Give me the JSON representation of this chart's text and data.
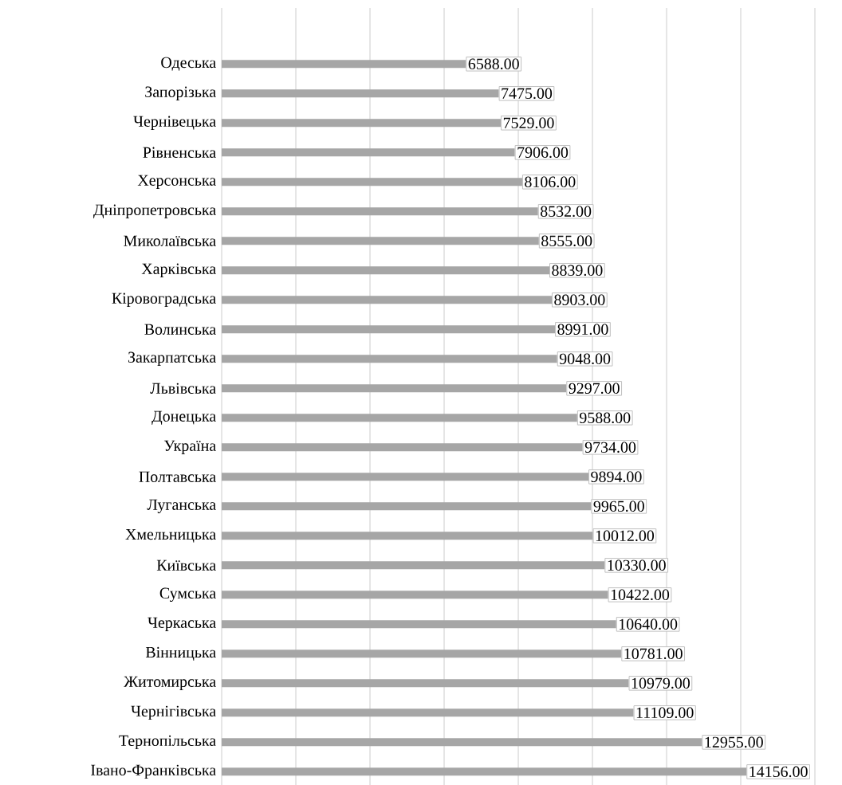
{
  "chart_data": {
    "type": "bar",
    "orientation": "horizontal",
    "categories": [
      "Одеська",
      "Запорізька",
      "Чернівецька",
      "Рівненська",
      "Херсонська",
      "Дніпропетровська",
      "Миколаївська",
      "Харківська",
      "Кіровоградська",
      "Волинська",
      "Закарпатська",
      "Львівська",
      "Донецька",
      "Україна",
      "Полтавська",
      "Луганська",
      "Хмельницька",
      "Київська",
      "Сумська",
      "Черкаська",
      "Вінницька",
      "Житомирська",
      "Чернігівська",
      "Тернопільська",
      "Івано-Франківська"
    ],
    "values": [
      6588,
      7475,
      7529,
      7906,
      8106,
      8532,
      8555,
      8839,
      8903,
      8991,
      9048,
      9297,
      9588,
      9734,
      9894,
      9965,
      10012,
      10330,
      10422,
      10640,
      10781,
      10979,
      11109,
      12955,
      14156
    ],
    "value_labels": [
      "6588.00",
      "7475.00",
      "7529.00",
      "7906.00",
      "8106.00",
      "8532.00",
      "8555.00",
      "8839.00",
      "8903.00",
      "8991.00",
      "9048.00",
      "9297.00",
      "9588.00",
      "9734.00",
      "9894.00",
      "9965.00",
      "10012.00",
      "10330.00",
      "10422.00",
      "10640.00",
      "10781.00",
      "10979.00",
      "11109.00",
      "12955.00",
      "14156.00"
    ],
    "color": "#a6a6a6",
    "xlim": [
      0,
      16000
    ],
    "xticks": [
      {
        "value": 0,
        "label": null
      },
      {
        "value": 2000,
        "label": null
      },
      {
        "value": 4000,
        "label": null
      },
      {
        "value": 6000,
        "label": null
      },
      {
        "value": 8000,
        "label": null
      },
      {
        "value": 10000,
        "label": null
      },
      {
        "value": 12000,
        "label": null
      },
      {
        "value": 14000,
        "label": null
      },
      {
        "value": 16000,
        "label": null
      }
    ],
    "grid": "x",
    "tick_labels": "y"
  }
}
